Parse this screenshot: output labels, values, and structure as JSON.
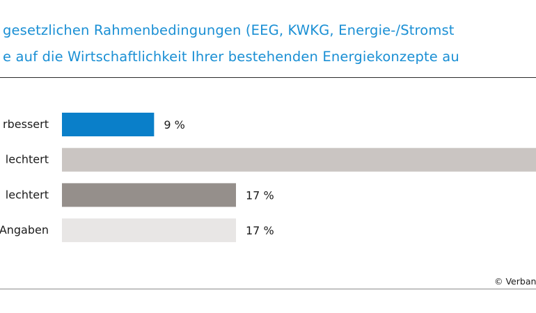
{
  "title_lines": [
    "gesetzlichen Rahmenbedingungen (EEG, KWKG, Energie-/Stromst",
    "e auf die Wirtschaftlichkeit Ihrer bestehenden Energiekonzepte au"
  ],
  "source": "© Verban",
  "colors": {
    "title": "#1a8fd4"
  },
  "chart_data": {
    "type": "bar",
    "orientation": "horizontal",
    "categories": [
      "rbessert",
      "lechtert",
      "lechtert",
      "Angaben"
    ],
    "values": [
      9,
      null,
      17,
      17
    ],
    "value_labels": [
      "9 %",
      "",
      "17 %",
      "17 %"
    ],
    "bar_colors": [
      "#0a7fc9",
      "#cac5c2",
      "#958f8b",
      "#e8e6e5"
    ],
    "xlim": [
      0,
      17
    ],
    "grid": false,
    "legend": "none",
    "note": ""
  }
}
